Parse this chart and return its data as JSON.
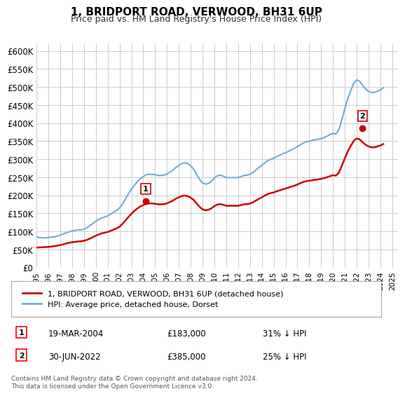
{
  "title": "1, BRIDPORT ROAD, VERWOOD, BH31 6UP",
  "subtitle": "Price paid vs. HM Land Registry's House Price Index (HPI)",
  "xlabel": "",
  "ylabel": "",
  "ylim": [
    0,
    620000
  ],
  "yticks": [
    0,
    50000,
    100000,
    150000,
    200000,
    250000,
    300000,
    350000,
    400000,
    450000,
    500000,
    550000,
    600000
  ],
  "ytick_labels": [
    "£0",
    "£50K",
    "£100K",
    "£150K",
    "£200K",
    "£250K",
    "£300K",
    "£350K",
    "£400K",
    "£450K",
    "£500K",
    "£550K",
    "£600K"
  ],
  "hpi_color": "#6baed6",
  "price_color": "#cc0000",
  "annotation_box_color": "#cc0000",
  "bg_color": "#ffffff",
  "grid_color": "#cccccc",
  "legend_label_price": "1, BRIDPORT ROAD, VERWOOD, BH31 6UP (detached house)",
  "legend_label_hpi": "HPI: Average price, detached house, Dorset",
  "purchase1_label": "1",
  "purchase1_date": "19-MAR-2004",
  "purchase1_price": "£183,000",
  "purchase1_pct": "31% ↓ HPI",
  "purchase2_label": "2",
  "purchase2_date": "30-JUN-2022",
  "purchase2_price": "£385,000",
  "purchase2_pct": "25% ↓ HPI",
  "footnote": "Contains HM Land Registry data © Crown copyright and database right 2024.\nThis data is licensed under the Open Government Licence v3.0.",
  "hpi_data": {
    "years": [
      1995.0,
      1995.25,
      1995.5,
      1995.75,
      1996.0,
      1996.25,
      1996.5,
      1996.75,
      1997.0,
      1997.25,
      1997.5,
      1997.75,
      1998.0,
      1998.25,
      1998.5,
      1998.75,
      1999.0,
      1999.25,
      1999.5,
      1999.75,
      2000.0,
      2000.25,
      2000.5,
      2000.75,
      2001.0,
      2001.25,
      2001.5,
      2001.75,
      2002.0,
      2002.25,
      2002.5,
      2002.75,
      2003.0,
      2003.25,
      2003.5,
      2003.75,
      2004.0,
      2004.25,
      2004.5,
      2004.75,
      2005.0,
      2005.25,
      2005.5,
      2005.75,
      2006.0,
      2006.25,
      2006.5,
      2006.75,
      2007.0,
      2007.25,
      2007.5,
      2007.75,
      2008.0,
      2008.25,
      2008.5,
      2008.75,
      2009.0,
      2009.25,
      2009.5,
      2009.75,
      2010.0,
      2010.25,
      2010.5,
      2010.75,
      2011.0,
      2011.25,
      2011.5,
      2011.75,
      2012.0,
      2012.25,
      2012.5,
      2012.75,
      2013.0,
      2013.25,
      2013.5,
      2013.75,
      2014.0,
      2014.25,
      2014.5,
      2014.75,
      2015.0,
      2015.25,
      2015.5,
      2015.75,
      2016.0,
      2016.25,
      2016.5,
      2016.75,
      2017.0,
      2017.25,
      2017.5,
      2017.75,
      2018.0,
      2018.25,
      2018.5,
      2018.75,
      2019.0,
      2019.25,
      2019.5,
      2019.75,
      2020.0,
      2020.25,
      2020.5,
      2020.75,
      2021.0,
      2021.25,
      2021.5,
      2021.75,
      2022.0,
      2022.25,
      2022.5,
      2022.75,
      2023.0,
      2023.25,
      2023.5,
      2023.75,
      2024.0,
      2024.25
    ],
    "values": [
      85000,
      83000,
      82000,
      82000,
      83000,
      84000,
      85000,
      87000,
      90000,
      93000,
      96000,
      99000,
      101000,
      103000,
      104000,
      104000,
      106000,
      110000,
      116000,
      122000,
      128000,
      133000,
      137000,
      140000,
      143000,
      148000,
      153000,
      158000,
      165000,
      176000,
      190000,
      204000,
      217000,
      228000,
      238000,
      246000,
      252000,
      257000,
      258000,
      258000,
      257000,
      255000,
      255000,
      256000,
      259000,
      264000,
      270000,
      277000,
      283000,
      288000,
      290000,
      288000,
      282000,
      272000,
      258000,
      244000,
      234000,
      231000,
      233000,
      239000,
      248000,
      254000,
      256000,
      253000,
      249000,
      249000,
      249000,
      249000,
      249000,
      252000,
      255000,
      256000,
      258000,
      263000,
      270000,
      277000,
      283000,
      290000,
      296000,
      300000,
      303000,
      307000,
      311000,
      315000,
      318000,
      322000,
      326000,
      330000,
      335000,
      340000,
      345000,
      348000,
      350000,
      352000,
      354000,
      355000,
      357000,
      360000,
      364000,
      368000,
      372000,
      370000,
      382000,
      410000,
      440000,
      468000,
      490000,
      510000,
      520000,
      516000,
      505000,
      495000,
      488000,
      485000,
      485000,
      488000,
      492000,
      498000
    ]
  },
  "price_data": {
    "years": [
      1995.0,
      1995.25,
      1995.5,
      1995.75,
      1996.0,
      1996.25,
      1996.5,
      1996.75,
      1997.0,
      1997.25,
      1997.5,
      1997.75,
      1998.0,
      1998.25,
      1998.5,
      1998.75,
      1999.0,
      1999.25,
      1999.5,
      1999.75,
      2000.0,
      2000.25,
      2000.5,
      2000.75,
      2001.0,
      2001.25,
      2001.5,
      2001.75,
      2002.0,
      2002.25,
      2002.5,
      2002.75,
      2003.0,
      2003.25,
      2003.5,
      2003.75,
      2004.0,
      2004.25,
      2004.5,
      2004.75,
      2005.0,
      2005.25,
      2005.5,
      2005.75,
      2006.0,
      2006.25,
      2006.5,
      2006.75,
      2007.0,
      2007.25,
      2007.5,
      2007.75,
      2008.0,
      2008.25,
      2008.5,
      2008.75,
      2009.0,
      2009.25,
      2009.5,
      2009.75,
      2010.0,
      2010.25,
      2010.5,
      2010.75,
      2011.0,
      2011.25,
      2011.5,
      2011.75,
      2012.0,
      2012.25,
      2012.5,
      2012.75,
      2013.0,
      2013.25,
      2013.5,
      2013.75,
      2014.0,
      2014.25,
      2014.5,
      2014.75,
      2015.0,
      2015.25,
      2015.5,
      2015.75,
      2016.0,
      2016.25,
      2016.5,
      2016.75,
      2017.0,
      2017.25,
      2017.5,
      2017.75,
      2018.0,
      2018.25,
      2018.5,
      2018.75,
      2019.0,
      2019.25,
      2019.5,
      2019.75,
      2020.0,
      2020.25,
      2020.5,
      2020.75,
      2021.0,
      2021.25,
      2021.5,
      2021.75,
      2022.0,
      2022.25,
      2022.5,
      2022.75,
      2023.0,
      2023.25,
      2023.5,
      2023.75,
      2024.0,
      2024.25
    ],
    "values": [
      55000,
      55500,
      56000,
      56500,
      57000,
      58000,
      59000,
      60500,
      62000,
      64000,
      66500,
      68500,
      70000,
      71000,
      72000,
      72500,
      74000,
      76500,
      80000,
      84000,
      88000,
      91500,
      94500,
      96500,
      98500,
      101500,
      105000,
      108500,
      113000,
      121000,
      130500,
      140000,
      149000,
      157000,
      163500,
      169000,
      173500,
      176500,
      177500,
      177500,
      176500,
      175000,
      175000,
      175500,
      177500,
      181500,
      185500,
      190500,
      194500,
      198000,
      199500,
      197500,
      193500,
      187000,
      177500,
      168000,
      161000,
      158500,
      160000,
      164000,
      170000,
      174500,
      175500,
      173500,
      171000,
      171000,
      171000,
      171000,
      171000,
      173000,
      175000,
      175500,
      177000,
      180500,
      185500,
      190000,
      194500,
      199000,
      203500,
      206000,
      208000,
      211000,
      213500,
      216500,
      218500,
      221500,
      224000,
      226500,
      230000,
      233500,
      237000,
      239000,
      240500,
      241500,
      243000,
      244000,
      245500,
      247500,
      250000,
      253000,
      255500,
      254500,
      262500,
      282000,
      302500,
      321500,
      337000,
      350500,
      357500,
      355000,
      347000,
      340000,
      335500,
      333000,
      333000,
      335500,
      338000,
      342000
    ]
  },
  "purchase_points": [
    {
      "year": 2004.2,
      "price": 183000,
      "label": "1"
    },
    {
      "year": 2022.5,
      "price": 385000,
      "label": "2"
    }
  ]
}
